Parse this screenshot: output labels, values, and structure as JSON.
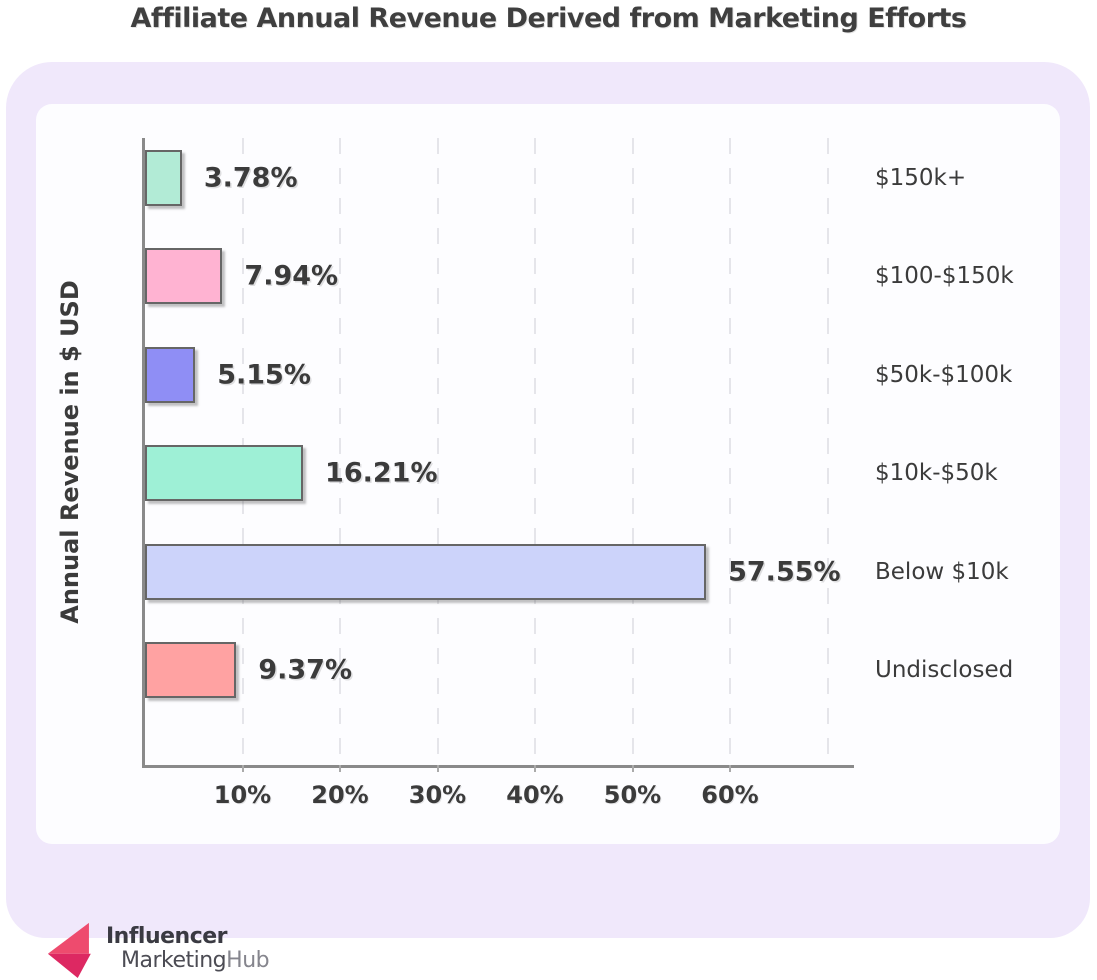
{
  "title": "Affiliate Annual Revenue Derived from Marketing Efforts",
  "chart_data": {
    "type": "bar",
    "orientation": "horizontal",
    "title": "Affiliate Annual Revenue Derived from Marketing Efforts",
    "ylabel": "Annual Revenue in $ USD",
    "xlabel": "",
    "categories": [
      "$150k+",
      "$100-$150k",
      "$50k-$100k",
      "$10k-$50k",
      "Below $10k",
      "Undisclosed"
    ],
    "values": [
      3.78,
      7.94,
      5.15,
      16.21,
      57.55,
      9.37
    ],
    "value_labels": [
      "3.78%",
      "7.94%",
      "5.15%",
      "16.21%",
      "57.55%",
      "9.37%"
    ],
    "bar_colors": [
      "#b2ebd6",
      "#ffb3d2",
      "#8f8ef5",
      "#9ef0d6",
      "#ccd3fa",
      "#ffa2a2"
    ],
    "bar_border_color": "#666666",
    "x_ticks": [
      {
        "pct": 10,
        "label": "10%"
      },
      {
        "pct": 20,
        "label": "20%"
      },
      {
        "pct": 30,
        "label": "30%"
      },
      {
        "pct": 40,
        "label": "40%"
      },
      {
        "pct": 50,
        "label": "50%"
      },
      {
        "pct": 60,
        "label": "60%"
      }
    ],
    "grid_pcts": [
      10,
      20,
      30,
      40,
      50,
      60,
      70
    ],
    "xlim": [
      0,
      73
    ],
    "grid": "dashed-vertical",
    "legend": "none",
    "axis_color": "#8a8a8a",
    "label_color": "#3b3b3b"
  },
  "colors": {
    "page_background": "#ffffff",
    "panel_background": "#f0e8fb",
    "card_background": "#fdfdff"
  },
  "logo": {
    "line1": "Influencer",
    "line2_part1": "Marketing",
    "line2_part2": "Hub",
    "icon_light": "#ee4b6e",
    "icon_dark": "#dd2862"
  }
}
